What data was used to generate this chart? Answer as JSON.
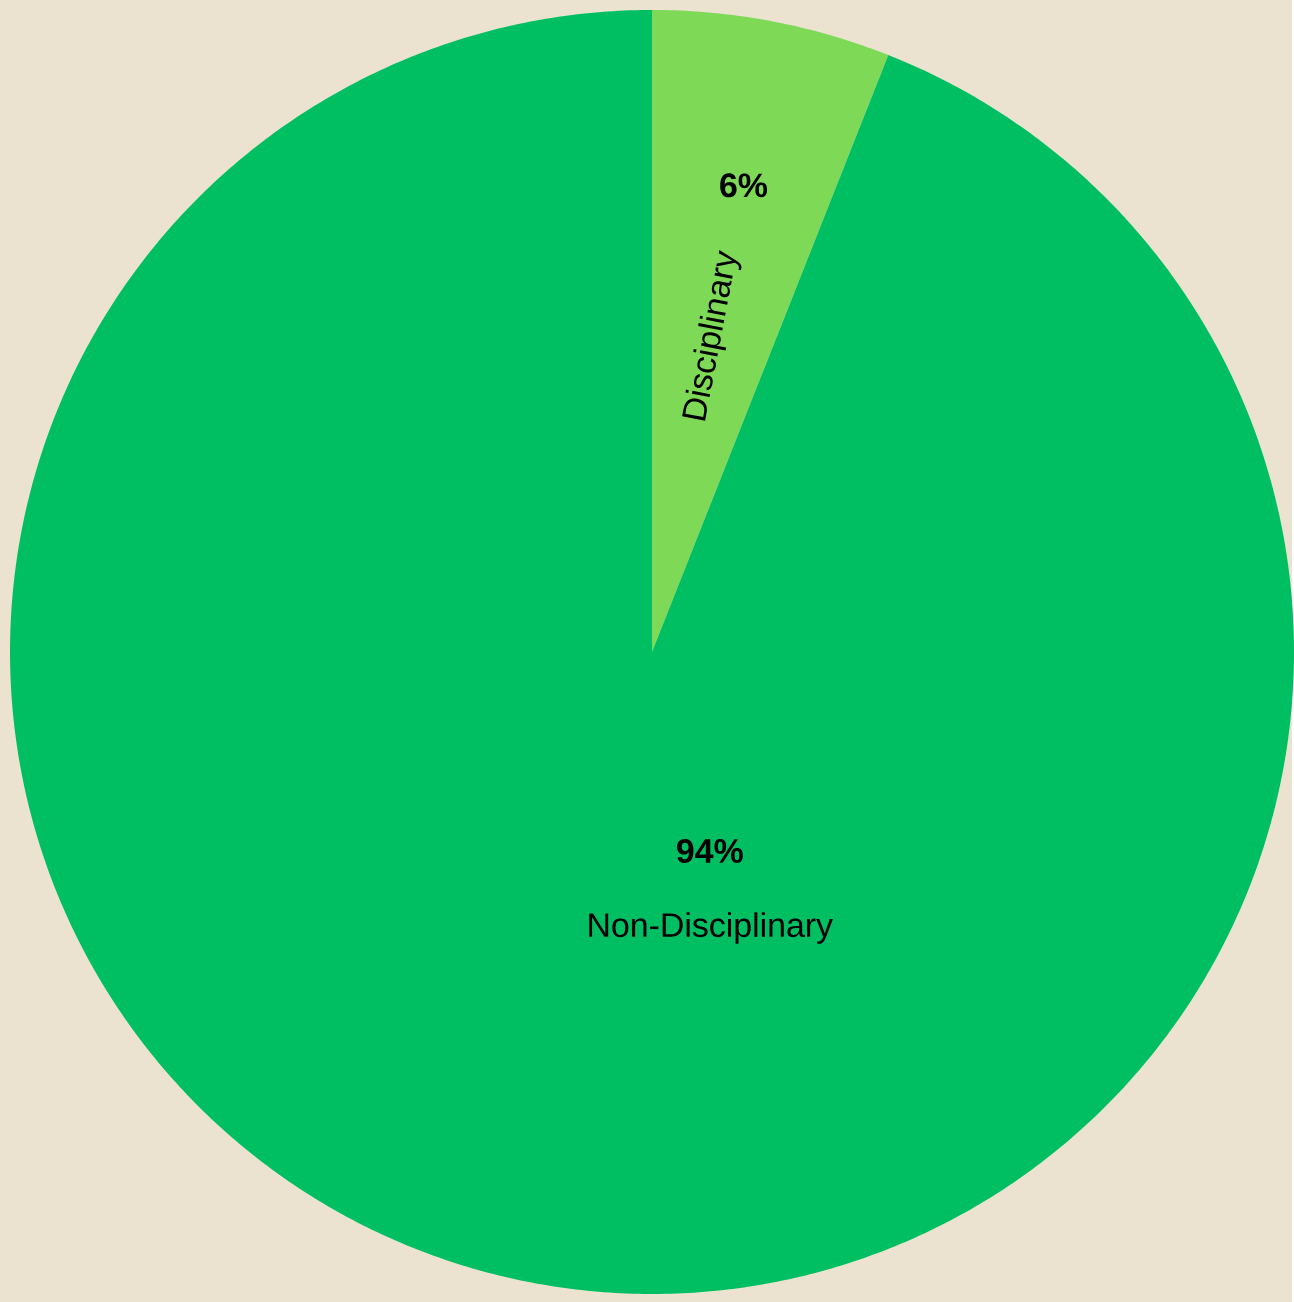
{
  "chart_data": {
    "type": "pie",
    "categories": [
      "Disciplinary",
      "Non-Disciplinary"
    ],
    "values": [
      6,
      94
    ],
    "value_labels": [
      "6%",
      "94%"
    ],
    "colors": [
      "#7ed957",
      "#00bf63"
    ]
  }
}
